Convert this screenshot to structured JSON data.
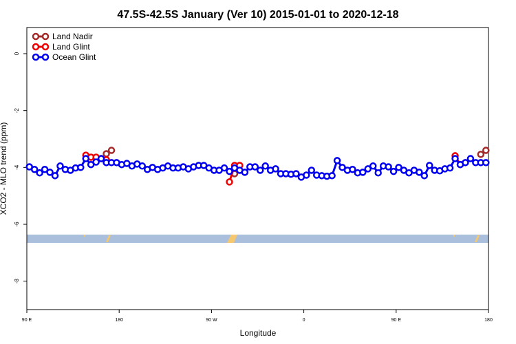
{
  "chart_data": {
    "type": "line",
    "title": "47.5S-42.5S January (Ver 10)   2015-01-01 to 2020-12-18",
    "x_label": "Longitude",
    "y_label": "XCO2 - MLO trend (ppm)",
    "xlim": [
      90,
      540
    ],
    "ylim": [
      -9,
      0.92
    ],
    "xticks": [
      {
        "value": 90,
        "label": "90 E"
      },
      180,
      {
        "value": 270,
        "label": "90 W"
      },
      {
        "value": 360,
        "label": "0"
      },
      {
        "value": 450,
        "label": "90 E"
      },
      {
        "value": 540,
        "label": "180"
      }
    ],
    "yticks": [
      0,
      -2,
      -4,
      -6,
      -8
    ],
    "legend": "top-left",
    "series": [
      {
        "name": "Land Nadir",
        "color": "#a52a2a",
        "x": [
          167.5,
          172.5,
          287.5,
          292.5,
          297.5,
          532.5,
          537.5
        ],
        "values": [
          -3.52,
          -3.4,
          null,
          -4.22,
          null,
          -3.54,
          -3.4
        ]
      },
      {
        "name": "Land Glint",
        "color": "#ee0000",
        "x": [
          147.5,
          152.5,
          157.5,
          162.5,
          167.5,
          277.5,
          287.5,
          292.5,
          297.5,
          502.5,
          507.5,
          512.5
        ],
        "values": [
          -3.57,
          -3.64,
          -3.64,
          -3.69,
          -3.73,
          null,
          -4.51,
          -3.93,
          -3.93,
          null,
          -3.59,
          -3.9
        ]
      },
      {
        "name": "Ocean Glint",
        "color": "#0000ee",
        "x": [
          92.5,
          97.5,
          102.5,
          107.5,
          112.5,
          117.5,
          122.5,
          127.5,
          132.5,
          137.5,
          142.5,
          147.5,
          152.5,
          157.5,
          162.5,
          167.5,
          172.5,
          177.5,
          182.5,
          187.5,
          192.5,
          197.5,
          202.5,
          207.5,
          212.5,
          217.5,
          222.5,
          227.5,
          232.5,
          237.5,
          242.5,
          247.5,
          252.5,
          257.5,
          262.5,
          267.5,
          272.5,
          277.5,
          282.5,
          287.5,
          292.5,
          297.5,
          302.5,
          307.5,
          312.5,
          317.5,
          322.5,
          327.5,
          332.5,
          337.5,
          342.5,
          347.5,
          352.5,
          357.5,
          362.5,
          367.5,
          372.5,
          377.5,
          382.5,
          387.5,
          392.5,
          397.5,
          402.5,
          407.5,
          412.5,
          417.5,
          422.5,
          427.5,
          432.5,
          437.5,
          442.5,
          447.5,
          452.5,
          457.5,
          462.5,
          467.5,
          472.5,
          477.5,
          482.5,
          487.5,
          492.5,
          497.5,
          502.5,
          507.5,
          512.5,
          517.5,
          522.5,
          527.5,
          532.5,
          537.5
        ],
        "values": [
          -3.98,
          -4.07,
          -4.19,
          -4.07,
          -4.17,
          -4.29,
          -3.95,
          -4.07,
          -4.1,
          -4.02,
          -4.0,
          -3.69,
          -3.9,
          -3.81,
          -3.69,
          -3.83,
          -3.83,
          -3.83,
          -3.9,
          -3.86,
          -3.95,
          -3.88,
          -3.95,
          -4.07,
          -4.0,
          -4.07,
          -4.02,
          -3.95,
          -4.02,
          -4.02,
          -3.98,
          -4.05,
          -3.98,
          -3.93,
          -3.93,
          -4.02,
          -4.1,
          -4.1,
          -4.02,
          -4.14,
          -4.02,
          -4.1,
          -4.17,
          -3.98,
          -3.98,
          -4.1,
          -3.95,
          -4.1,
          -4.05,
          -4.22,
          -4.22,
          -4.24,
          -4.22,
          -4.34,
          -4.27,
          -4.1,
          -4.27,
          -4.29,
          -4.31,
          -4.29,
          -3.76,
          -4.0,
          -4.1,
          -4.07,
          -4.19,
          -4.17,
          -4.05,
          -3.95,
          -4.19,
          -3.95,
          -3.98,
          -4.14,
          -4.0,
          -4.1,
          -4.19,
          -4.1,
          -4.17,
          -4.29,
          -3.93,
          -4.1,
          -4.12,
          -4.05,
          -4.02,
          -3.69,
          -3.9,
          -3.83,
          -3.69,
          -3.83,
          -3.83,
          -3.83
        ]
      }
    ]
  }
}
